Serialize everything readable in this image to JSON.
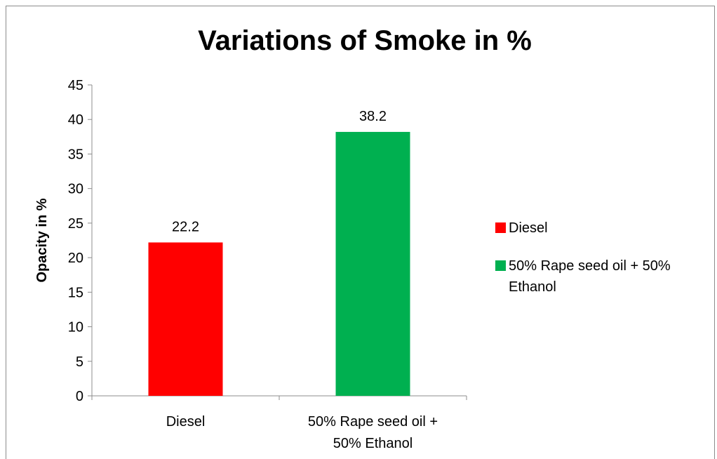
{
  "chart_data": {
    "type": "bar",
    "title": "Variations of Smoke in %",
    "xlabel": "",
    "ylabel": "Opacity in %",
    "ylim": [
      0,
      45
    ],
    "yticks": [
      0,
      5,
      10,
      15,
      20,
      25,
      30,
      35,
      40,
      45
    ],
    "categories": [
      "Diesel",
      "50% Rape seed  oil + 50% Ethanol"
    ],
    "category_label_lines": [
      [
        "Diesel"
      ],
      [
        "50% Rape seed  oil +",
        "50% Ethanol"
      ]
    ],
    "values": [
      22.2,
      38.2
    ],
    "data_labels": [
      "22.2",
      "38.2"
    ],
    "colors": [
      "#ff0000",
      "#00b050"
    ],
    "grid": false,
    "legend_position": "right",
    "legend": [
      "Diesel",
      "50% Rape seed  oil + 50% Ethanol"
    ],
    "legend_label_lines": [
      [
        "Diesel"
      ],
      [
        "50% Rape seed  oil + 50%",
        "Ethanol"
      ]
    ]
  }
}
